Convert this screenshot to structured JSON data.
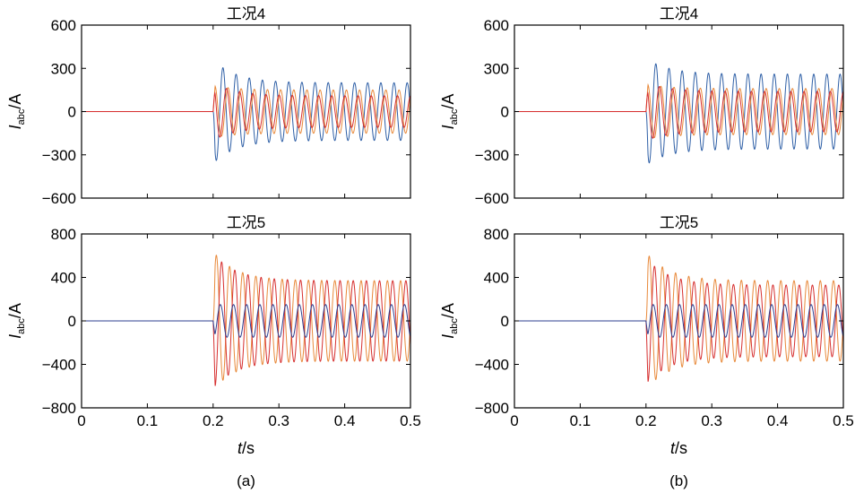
{
  "figure": {
    "captions": [
      "(a)",
      "(b)"
    ],
    "x_label_var": "t",
    "x_label_unit": "/s",
    "y_label_var": "I",
    "y_label_sub": "abc",
    "y_label_unit": "/A"
  },
  "chart_data": [
    {
      "type": "line",
      "panel": "(a)",
      "title": "工况4",
      "xlabel": "t/s",
      "ylabel": "Iabc/A",
      "xlim": [
        0,
        0.5
      ],
      "ylim": [
        -600,
        600
      ],
      "xticks": [
        "0",
        "0.1",
        "0.2",
        "0.3",
        "0.4",
        "0.5"
      ],
      "yticks": [
        "-600",
        "-300",
        "0",
        "300",
        "600"
      ],
      "grid": false,
      "legend": "none",
      "fault_time": 0.2,
      "frequency_hz": 50,
      "series": [
        {
          "color": "#2e5fa6",
          "pre_fault": 0,
          "first_peak": -360,
          "steady_amplitude": 200,
          "phase_deg": 180
        },
        {
          "color": "#e8893a",
          "pre_fault": 0,
          "first_peak": 180,
          "steady_amplitude": 150,
          "phase_deg": 60
        },
        {
          "color": "#d62f2f",
          "pre_fault": 0,
          "first_peak": 200,
          "steady_amplitude": 110,
          "phase_deg": -60
        }
      ]
    },
    {
      "type": "line",
      "panel": "(a)",
      "title": "工况5",
      "xlabel": "t/s",
      "ylabel": "Iabc/A",
      "xlim": [
        0,
        0.5
      ],
      "ylim": [
        -800,
        800
      ],
      "xticks": [
        "0",
        "0.1",
        "0.2",
        "0.3",
        "0.4",
        "0.5"
      ],
      "yticks": [
        "-800",
        "-400",
        "0",
        "400",
        "800"
      ],
      "grid": false,
      "legend": "none",
      "fault_time": 0.2,
      "frequency_hz": 50,
      "series": [
        {
          "color": "#e8893a",
          "pre_fault": 0,
          "first_peak": 640,
          "steady_amplitude": 370,
          "phase_deg": 90
        },
        {
          "color": "#d62f2f",
          "pre_fault": 0,
          "first_peak": -620,
          "steady_amplitude": 370,
          "phase_deg": -90
        },
        {
          "color": "#2e3f8f",
          "pre_fault": 0,
          "first_peak": -150,
          "steady_amplitude": 150,
          "phase_deg": 0
        }
      ]
    },
    {
      "type": "line",
      "panel": "(b)",
      "title": "工况4",
      "xlabel": "t/s",
      "ylabel": "Iabc/A",
      "xlim": [
        0,
        0.5
      ],
      "ylim": [
        -600,
        600
      ],
      "xticks": [
        "0",
        "0.1",
        "0.2",
        "0.3",
        "0.4",
        "0.5"
      ],
      "yticks": [
        "-600",
        "-300",
        "0",
        "300",
        "600"
      ],
      "grid": false,
      "legend": "none",
      "fault_time": 0.2,
      "frequency_hz": 50,
      "series": [
        {
          "color": "#2e5fa6",
          "pre_fault": 0,
          "first_peak": -370,
          "steady_amplitude": 260,
          "phase_deg": 180
        },
        {
          "color": "#e8893a",
          "pre_fault": 0,
          "first_peak": 190,
          "steady_amplitude": 160,
          "phase_deg": 60
        },
        {
          "color": "#d62f2f",
          "pre_fault": 0,
          "first_peak": 200,
          "steady_amplitude": 140,
          "phase_deg": -60
        }
      ]
    },
    {
      "type": "line",
      "panel": "(b)",
      "title": "工况5",
      "xlabel": "t/s",
      "ylabel": "Iabc/A",
      "xlim": [
        0,
        0.5
      ],
      "ylim": [
        -800,
        800
      ],
      "xticks": [
        "0",
        "0.1",
        "0.2",
        "0.3",
        "0.4",
        "0.5"
      ],
      "yticks": [
        "-800",
        "-400",
        "0",
        "400",
        "800"
      ],
      "grid": false,
      "legend": "none",
      "fault_time": 0.2,
      "frequency_hz": 50,
      "series": [
        {
          "color": "#e8893a",
          "pre_fault": 0,
          "first_peak": 630,
          "steady_amplitude": 370,
          "phase_deg": 90
        },
        {
          "color": "#d62f2f",
          "pre_fault": 0,
          "first_peak": -580,
          "steady_amplitude": 330,
          "phase_deg": -90
        },
        {
          "color": "#2e3f8f",
          "pre_fault": 0,
          "first_peak": -150,
          "steady_amplitude": 150,
          "phase_deg": 0
        }
      ]
    }
  ]
}
